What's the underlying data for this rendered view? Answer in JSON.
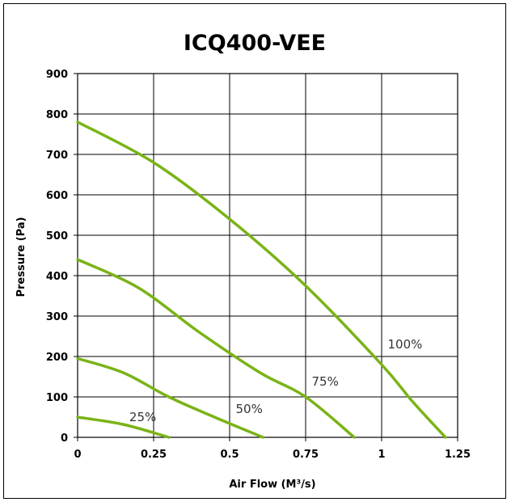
{
  "chart_data": {
    "type": "line",
    "title": "ICQ400-VEE",
    "xlabel": "Air Flow (M³/s)",
    "ylabel": "Pressure (Pa)",
    "xlim": [
      0,
      1.25
    ],
    "ylim": [
      0,
      900
    ],
    "x_ticks": [
      "0",
      "0.25",
      "0.5",
      "0.75",
      "1",
      "1.25"
    ],
    "y_ticks": [
      "0",
      "100",
      "200",
      "300",
      "400",
      "500",
      "600",
      "700",
      "800",
      "900"
    ],
    "grid": true,
    "line_color": "#7ab317",
    "series": [
      {
        "name": "100%",
        "x": [
          0,
          0.25,
          0.5,
          0.75,
          1.0,
          1.1,
          1.21
        ],
        "y": [
          780,
          680,
          540,
          375,
          180,
          90,
          0
        ]
      },
      {
        "name": "75%",
        "x": [
          0,
          0.2,
          0.4,
          0.6,
          0.75,
          0.91
        ],
        "y": [
          440,
          370,
          260,
          160,
          100,
          0
        ]
      },
      {
        "name": "50%",
        "x": [
          0,
          0.15,
          0.3,
          0.45,
          0.61
        ],
        "y": [
          195,
          160,
          100,
          50,
          0
        ]
      },
      {
        "name": "25%",
        "x": [
          0,
          0.15,
          0.3
        ],
        "y": [
          50,
          32,
          0
        ]
      }
    ],
    "labels": [
      {
        "text": "100%",
        "x": 1.02,
        "y": 220
      },
      {
        "text": "75%",
        "x": 0.77,
        "y": 128
      },
      {
        "text": "50%",
        "x": 0.52,
        "y": 60
      },
      {
        "text": "25%",
        "x": 0.17,
        "y": 40
      }
    ]
  }
}
